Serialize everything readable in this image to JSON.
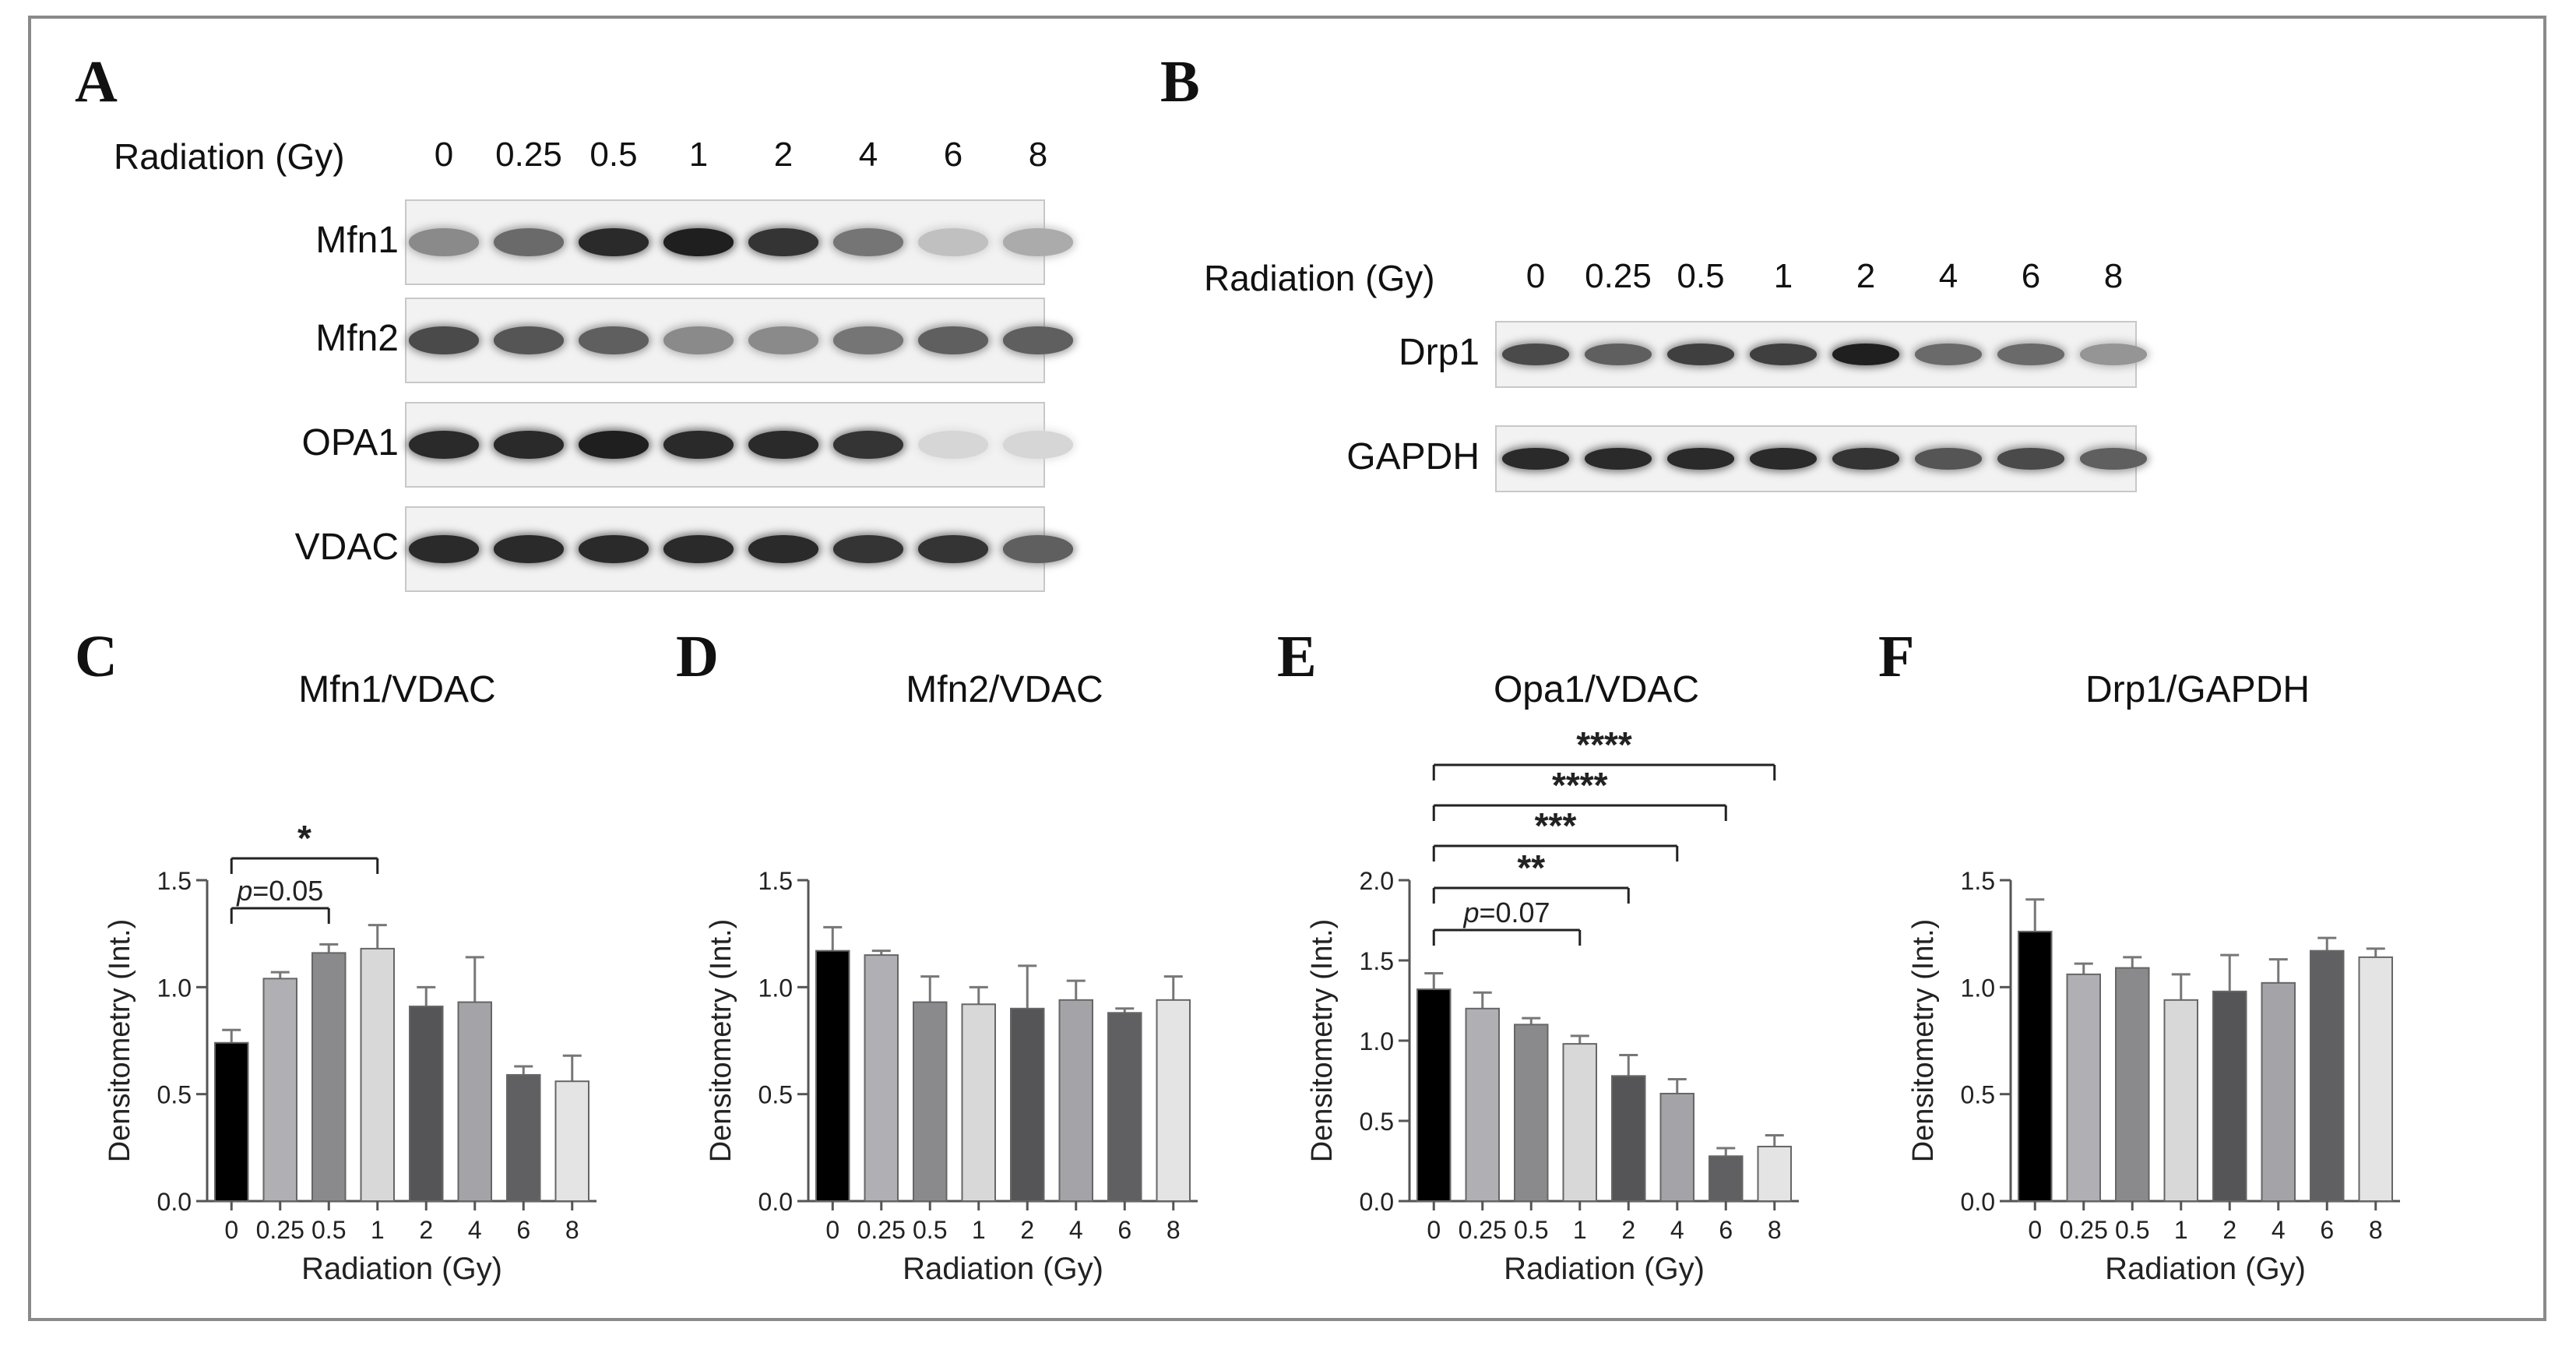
{
  "panels": {
    "A": "A",
    "B": "B",
    "C": "C",
    "D": "D",
    "E": "E",
    "F": "F"
  },
  "blot_a": {
    "header": "Radiation (Gy)",
    "lanes": [
      "0",
      "0.25",
      "0.5",
      "1",
      "2",
      "4",
      "6",
      "8"
    ],
    "rows": [
      {
        "label": "Mfn1",
        "intensity": [
          0.45,
          0.6,
          0.9,
          0.95,
          0.85,
          0.55,
          0.2,
          0.3
        ]
      },
      {
        "label": "Mfn2",
        "intensity": [
          0.75,
          0.7,
          0.65,
          0.45,
          0.45,
          0.55,
          0.65,
          0.65
        ]
      },
      {
        "label": "OPA1",
        "intensity": [
          0.9,
          0.9,
          0.95,
          0.9,
          0.9,
          0.85,
          0.1,
          0.1
        ]
      },
      {
        "label": "VDAC",
        "intensity": [
          0.9,
          0.9,
          0.9,
          0.9,
          0.9,
          0.85,
          0.85,
          0.65
        ]
      }
    ]
  },
  "blot_b": {
    "header": "Radiation (Gy)",
    "lanes": [
      "0",
      "0.25",
      "0.5",
      "1",
      "2",
      "4",
      "6",
      "8"
    ],
    "rows": [
      {
        "label": "Drp1",
        "intensity": [
          0.75,
          0.65,
          0.8,
          0.8,
          0.95,
          0.6,
          0.6,
          0.4
        ]
      },
      {
        "label": "GAPDH",
        "intensity": [
          0.9,
          0.9,
          0.9,
          0.9,
          0.85,
          0.7,
          0.75,
          0.65
        ]
      }
    ]
  },
  "chart_data": [
    {
      "type": "bar",
      "title": "Mfn1/VDAC",
      "xlabel": "Radiation (Gy)",
      "ylabel": "Densitometry (Int.)",
      "categories": [
        "0",
        "0.25",
        "0.5",
        "1",
        "2",
        "4",
        "6",
        "8"
      ],
      "values": [
        0.74,
        1.04,
        1.16,
        1.18,
        0.91,
        0.93,
        0.59,
        0.56
      ],
      "errors": [
        0.06,
        0.03,
        0.04,
        0.11,
        0.09,
        0.21,
        0.04,
        0.12
      ],
      "ylim": [
        0,
        1.5
      ],
      "yticks": [
        "0.0",
        "0.5",
        "1.0",
        "1.5"
      ],
      "colors": [
        "#000000",
        "#b0b0b4",
        "#8a8a8c",
        "#d8d8d8",
        "#555557",
        "#a4a4a8",
        "#606062",
        "#e4e4e4"
      ],
      "annotations": [
        {
          "from": 0,
          "to": 2,
          "label": "p=0.05",
          "italic_p": true
        },
        {
          "from": 0,
          "to": 3,
          "label": "*"
        }
      ]
    },
    {
      "type": "bar",
      "title": "Mfn2/VDAC",
      "xlabel": "Radiation (Gy)",
      "ylabel": "Densitometry (Int.)",
      "categories": [
        "0",
        "0.25",
        "0.5",
        "1",
        "2",
        "4",
        "6",
        "8"
      ],
      "values": [
        1.17,
        1.15,
        0.93,
        0.92,
        0.9,
        0.94,
        0.88,
        0.94
      ],
      "errors": [
        0.11,
        0.02,
        0.12,
        0.08,
        0.2,
        0.09,
        0.02,
        0.11
      ],
      "ylim": [
        0,
        1.5
      ],
      "yticks": [
        "0.0",
        "0.5",
        "1.0",
        "1.5"
      ],
      "colors": [
        "#000000",
        "#b0b0b4",
        "#8a8a8c",
        "#d8d8d8",
        "#555557",
        "#a4a4a8",
        "#606062",
        "#e4e4e4"
      ],
      "annotations": []
    },
    {
      "type": "bar",
      "title": "Opa1/VDAC",
      "xlabel": "Radiation (Gy)",
      "ylabel": "Densitometry (Int.)",
      "categories": [
        "0",
        "0.25",
        "0.5",
        "1",
        "2",
        "4",
        "6",
        "8"
      ],
      "values": [
        1.32,
        1.2,
        1.1,
        0.98,
        0.78,
        0.67,
        0.28,
        0.34
      ],
      "errors": [
        0.1,
        0.1,
        0.04,
        0.05,
        0.13,
        0.09,
        0.05,
        0.07
      ],
      "ylim": [
        0,
        2.0
      ],
      "yticks": [
        "0.0",
        "0.5",
        "1.0",
        "1.5",
        "2.0"
      ],
      "colors": [
        "#000000",
        "#b0b0b4",
        "#8a8a8c",
        "#d8d8d8",
        "#555557",
        "#a4a4a8",
        "#606062",
        "#e4e4e4"
      ],
      "annotations": [
        {
          "from": 0,
          "to": 3,
          "label": "p=0.07",
          "italic_p": true
        },
        {
          "from": 0,
          "to": 4,
          "label": "**"
        },
        {
          "from": 0,
          "to": 5,
          "label": "***"
        },
        {
          "from": 0,
          "to": 6,
          "label": "****"
        },
        {
          "from": 0,
          "to": 7,
          "label": "****"
        }
      ]
    },
    {
      "type": "bar",
      "title": "Drp1/GAPDH",
      "xlabel": "Radiation (Gy)",
      "ylabel": "Densitometry (Int.)",
      "categories": [
        "0",
        "0.25",
        "0.5",
        "1",
        "2",
        "4",
        "6",
        "8"
      ],
      "values": [
        1.26,
        1.06,
        1.09,
        0.94,
        0.98,
        1.02,
        1.17,
        1.14
      ],
      "errors": [
        0.15,
        0.05,
        0.05,
        0.12,
        0.17,
        0.11,
        0.06,
        0.04
      ],
      "ylim": [
        0,
        1.5
      ],
      "yticks": [
        "0.0",
        "0.5",
        "1.0",
        "1.5"
      ],
      "colors": [
        "#000000",
        "#b0b0b4",
        "#8a8a8c",
        "#d8d8d8",
        "#555557",
        "#a4a4a8",
        "#606062",
        "#e4e4e4"
      ],
      "annotations": []
    }
  ]
}
